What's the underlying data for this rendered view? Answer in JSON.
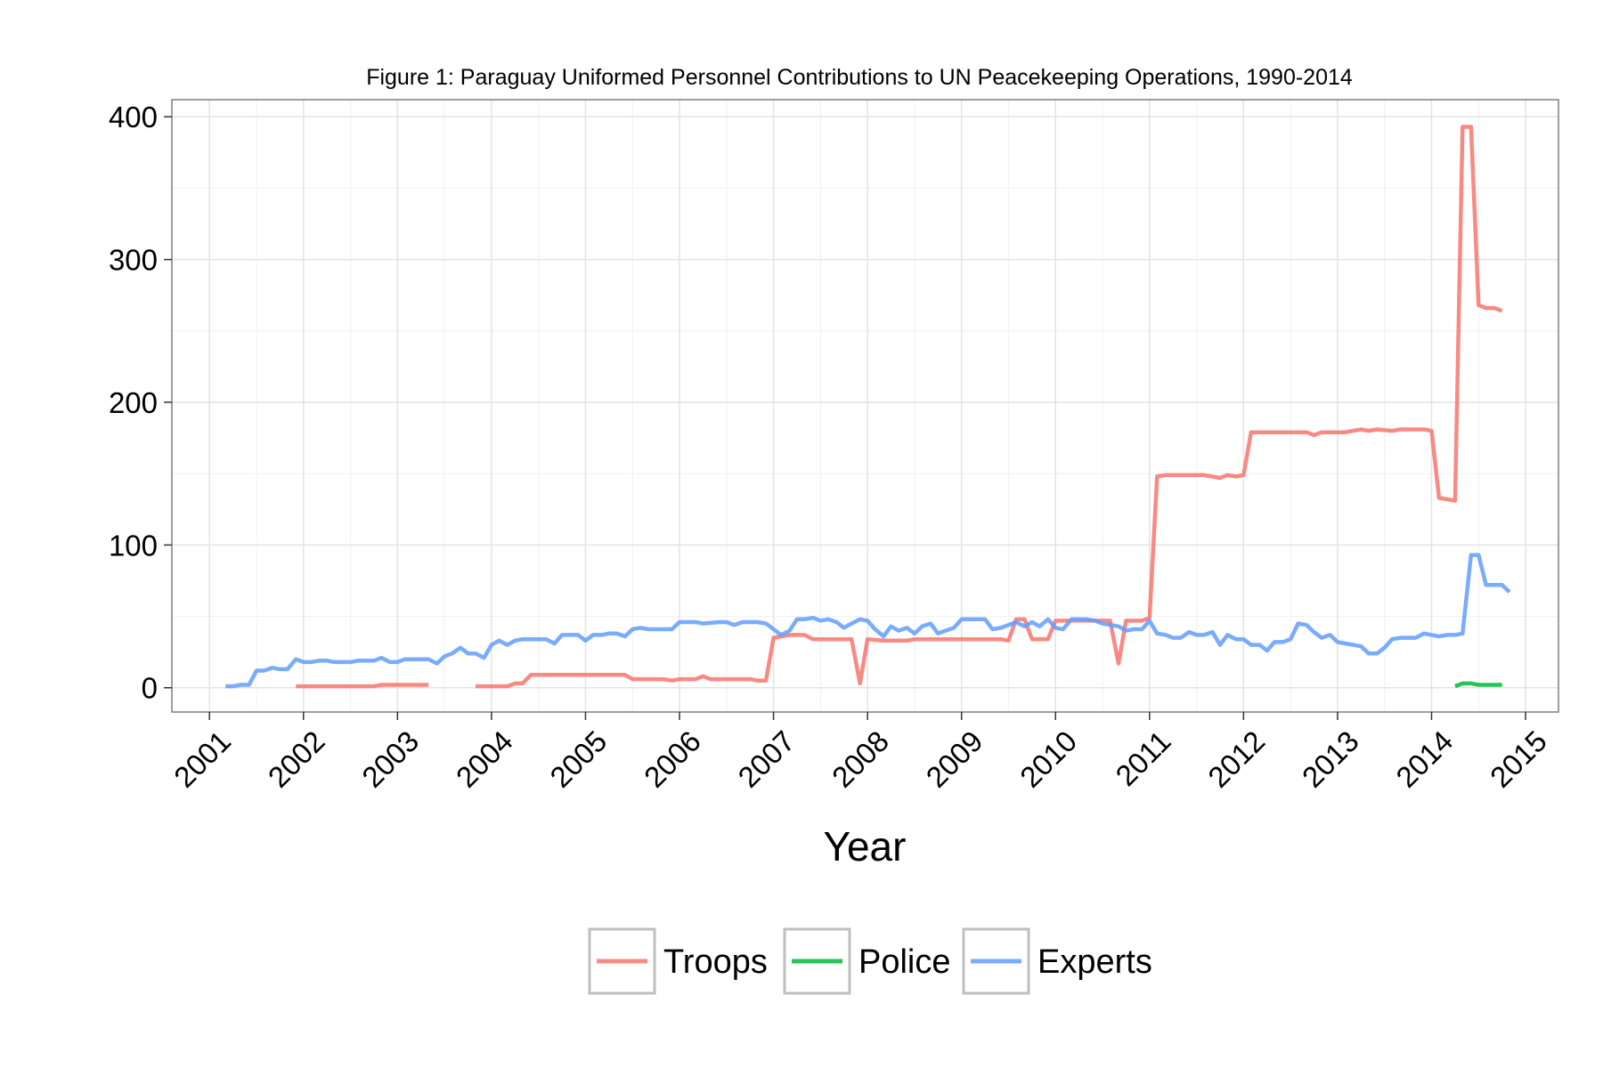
{
  "chart_data": {
    "type": "line",
    "title": "Figure 1: Paraguay Uniformed Personnel Contributions to UN Peacekeeping Operations, 1990-2014",
    "xlabel": "Year",
    "ylabel": "",
    "xlim": [
      2000.6,
      2015.35
    ],
    "ylim": [
      -17,
      412
    ],
    "x_ticks": [
      2001,
      2002,
      2003,
      2004,
      2005,
      2006,
      2007,
      2008,
      2009,
      2010,
      2011,
      2012,
      2013,
      2014,
      2015
    ],
    "y_ticks": [
      0,
      100,
      200,
      300,
      400
    ],
    "grid": true,
    "legend_position": "bottom",
    "series": [
      {
        "name": "Troops",
        "color": "#F8766D",
        "points": [
          [
            2001.92,
            1
          ],
          [
            2002.5,
            1
          ],
          [
            2002.75,
            1
          ],
          [
            2002.83,
            2
          ],
          [
            2003.33,
            2
          ],
          null,
          [
            2003.83,
            1
          ],
          [
            2004.17,
            1
          ],
          [
            2004.25,
            3
          ],
          [
            2004.33,
            3
          ],
          [
            2004.42,
            9
          ],
          [
            2004.5,
            9
          ],
          [
            2005.0,
            9
          ],
          [
            2005.42,
            9
          ],
          [
            2005.5,
            6
          ],
          [
            2005.83,
            6
          ],
          [
            2005.92,
            5
          ],
          [
            2006.0,
            6
          ],
          [
            2006.17,
            6
          ],
          [
            2006.25,
            8
          ],
          [
            2006.33,
            6
          ],
          [
            2006.75,
            6
          ],
          [
            2006.83,
            5
          ],
          [
            2006.92,
            5
          ],
          [
            2007.0,
            35
          ],
          [
            2007.17,
            37
          ],
          [
            2007.33,
            37
          ],
          [
            2007.42,
            34
          ],
          [
            2007.83,
            34
          ],
          [
            2007.92,
            3
          ],
          [
            2008.0,
            34
          ],
          [
            2008.17,
            33
          ],
          [
            2008.42,
            33
          ],
          [
            2008.5,
            34
          ],
          [
            2009.42,
            34
          ],
          [
            2009.5,
            33
          ],
          [
            2009.58,
            48
          ],
          [
            2009.67,
            48
          ],
          [
            2009.75,
            34
          ],
          [
            2009.92,
            34
          ],
          [
            2010.0,
            47
          ],
          [
            2010.5,
            47
          ],
          [
            2010.58,
            47
          ],
          [
            2010.67,
            17
          ],
          [
            2010.75,
            47
          ],
          [
            2010.92,
            47
          ],
          [
            2011.0,
            49
          ],
          [
            2011.08,
            148
          ],
          [
            2011.17,
            149
          ],
          [
            2011.58,
            149
          ],
          [
            2011.75,
            147
          ],
          [
            2011.83,
            149
          ],
          [
            2011.92,
            148
          ],
          [
            2012.0,
            149
          ],
          [
            2012.08,
            179
          ],
          [
            2012.67,
            179
          ],
          [
            2012.75,
            177
          ],
          [
            2012.83,
            179
          ],
          [
            2013.08,
            179
          ],
          [
            2013.25,
            181
          ],
          [
            2013.33,
            180
          ],
          [
            2013.42,
            181
          ],
          [
            2013.58,
            180
          ],
          [
            2013.67,
            181
          ],
          [
            2013.92,
            181
          ],
          [
            2014.0,
            180
          ],
          [
            2014.08,
            133
          ],
          [
            2014.17,
            132
          ],
          [
            2014.25,
            131
          ],
          [
            2014.33,
            393
          ],
          [
            2014.42,
            393
          ],
          [
            2014.5,
            268
          ],
          [
            2014.58,
            266
          ],
          [
            2014.67,
            266
          ],
          [
            2014.75,
            264
          ]
        ]
      },
      {
        "name": "Police",
        "color": "#00BA38",
        "points": [
          [
            2014.25,
            1
          ],
          [
            2014.33,
            3
          ],
          [
            2014.42,
            3
          ],
          [
            2014.5,
            2
          ],
          [
            2014.75,
            2
          ]
        ]
      },
      {
        "name": "Experts",
        "color": "#619CFF",
        "points": [
          [
            2001.17,
            1
          ],
          [
            2001.25,
            1
          ],
          [
            2001.33,
            2
          ],
          [
            2001.42,
            2
          ],
          [
            2001.5,
            12
          ],
          [
            2001.58,
            12
          ],
          [
            2001.67,
            14
          ],
          [
            2001.75,
            13
          ],
          [
            2001.83,
            13
          ],
          [
            2001.92,
            20
          ],
          [
            2002.0,
            18
          ],
          [
            2002.08,
            18
          ],
          [
            2002.17,
            19
          ],
          [
            2002.25,
            19
          ],
          [
            2002.33,
            18
          ],
          [
            2002.5,
            18
          ],
          [
            2002.58,
            19
          ],
          [
            2002.75,
            19
          ],
          [
            2002.83,
            21
          ],
          [
            2002.92,
            18
          ],
          [
            2003.0,
            18
          ],
          [
            2003.08,
            20
          ],
          [
            2003.33,
            20
          ],
          [
            2003.42,
            17
          ],
          [
            2003.5,
            22
          ],
          [
            2003.58,
            24
          ],
          [
            2003.67,
            28
          ],
          [
            2003.75,
            24
          ],
          [
            2003.83,
            24
          ],
          [
            2003.92,
            21
          ],
          [
            2004.0,
            30
          ],
          [
            2004.08,
            33
          ],
          [
            2004.17,
            30
          ],
          [
            2004.25,
            33
          ],
          [
            2004.33,
            34
          ],
          [
            2004.58,
            34
          ],
          [
            2004.67,
            31
          ],
          [
            2004.75,
            37
          ],
          [
            2004.92,
            37
          ],
          [
            2005.0,
            33
          ],
          [
            2005.08,
            37
          ],
          [
            2005.17,
            37
          ],
          [
            2005.25,
            38
          ],
          [
            2005.33,
            38
          ],
          [
            2005.42,
            36
          ],
          [
            2005.5,
            41
          ],
          [
            2005.58,
            42
          ],
          [
            2005.67,
            41
          ],
          [
            2005.92,
            41
          ],
          [
            2006.0,
            46
          ],
          [
            2006.17,
            46
          ],
          [
            2006.25,
            45
          ],
          [
            2006.42,
            46
          ],
          [
            2006.5,
            46
          ],
          [
            2006.58,
            44
          ],
          [
            2006.67,
            46
          ],
          [
            2006.83,
            46
          ],
          [
            2006.92,
            45
          ],
          [
            2007.0,
            41
          ],
          [
            2007.08,
            37
          ],
          [
            2007.17,
            40
          ],
          [
            2007.25,
            48
          ],
          [
            2007.33,
            48
          ],
          [
            2007.42,
            49
          ],
          [
            2007.5,
            47
          ],
          [
            2007.58,
            48
          ],
          [
            2007.67,
            46
          ],
          [
            2007.75,
            42
          ],
          [
            2007.83,
            45
          ],
          [
            2007.92,
            48
          ],
          [
            2008.0,
            47
          ],
          [
            2008.08,
            41
          ],
          [
            2008.17,
            36
          ],
          [
            2008.25,
            43
          ],
          [
            2008.33,
            40
          ],
          [
            2008.42,
            42
          ],
          [
            2008.5,
            38
          ],
          [
            2008.58,
            43
          ],
          [
            2008.67,
            45
          ],
          [
            2008.75,
            38
          ],
          [
            2008.83,
            40
          ],
          [
            2008.92,
            42
          ],
          [
            2009.0,
            48
          ],
          [
            2009.25,
            48
          ],
          [
            2009.33,
            41
          ],
          [
            2009.42,
            42
          ],
          [
            2009.5,
            44
          ],
          [
            2009.58,
            46
          ],
          [
            2009.67,
            43
          ],
          [
            2009.75,
            46
          ],
          [
            2009.83,
            43
          ],
          [
            2009.92,
            48
          ],
          [
            2010.0,
            42
          ],
          [
            2010.08,
            41
          ],
          [
            2010.17,
            48
          ],
          [
            2010.33,
            48
          ],
          [
            2010.42,
            47
          ],
          [
            2010.5,
            45
          ],
          [
            2010.67,
            43
          ],
          [
            2010.75,
            40
          ],
          [
            2010.83,
            41
          ],
          [
            2010.92,
            41
          ],
          [
            2011.0,
            47
          ],
          [
            2011.08,
            38
          ],
          [
            2011.17,
            37
          ],
          [
            2011.25,
            35
          ],
          [
            2011.33,
            35
          ],
          [
            2011.42,
            39
          ],
          [
            2011.5,
            37
          ],
          [
            2011.58,
            37
          ],
          [
            2011.67,
            39
          ],
          [
            2011.75,
            30
          ],
          [
            2011.83,
            37
          ],
          [
            2011.92,
            34
          ],
          [
            2012.0,
            34
          ],
          [
            2012.08,
            30
          ],
          [
            2012.17,
            30
          ],
          [
            2012.25,
            26
          ],
          [
            2012.33,
            32
          ],
          [
            2012.42,
            32
          ],
          [
            2012.5,
            34
          ],
          [
            2012.58,
            45
          ],
          [
            2012.67,
            44
          ],
          [
            2012.75,
            39
          ],
          [
            2012.83,
            35
          ],
          [
            2012.92,
            37
          ],
          [
            2013.0,
            32
          ],
          [
            2013.08,
            31
          ],
          [
            2013.17,
            30
          ],
          [
            2013.25,
            29
          ],
          [
            2013.33,
            24
          ],
          [
            2013.42,
            24
          ],
          [
            2013.5,
            28
          ],
          [
            2013.58,
            34
          ],
          [
            2013.67,
            35
          ],
          [
            2013.83,
            35
          ],
          [
            2013.92,
            38
          ],
          [
            2014.0,
            37
          ],
          [
            2014.08,
            36
          ],
          [
            2014.17,
            37
          ],
          [
            2014.25,
            37
          ],
          [
            2014.33,
            38
          ],
          [
            2014.42,
            93
          ],
          [
            2014.5,
            93
          ],
          [
            2014.58,
            72
          ],
          [
            2014.75,
            72
          ],
          [
            2014.83,
            67
          ]
        ]
      }
    ]
  }
}
